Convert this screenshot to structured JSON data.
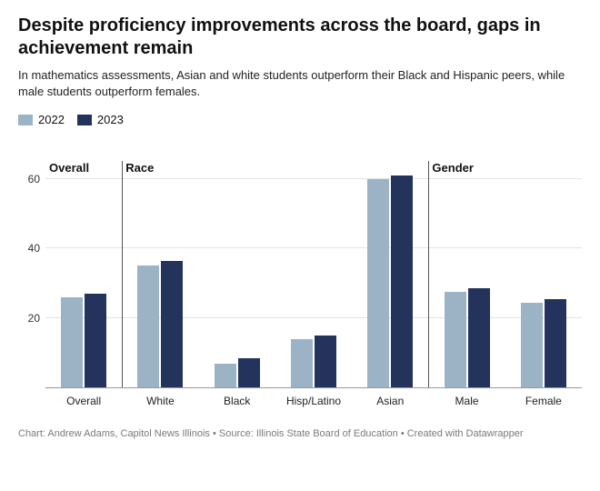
{
  "title": "Despite proficiency improvements across the board, gaps in achievement remain",
  "subtitle": "In mathematics assessments, Asian and white students outperform their Black and Hispanic peers, while male students outperform females.",
  "legend": [
    {
      "label": "2022",
      "color": "#9cb3c6"
    },
    {
      "label": "2023",
      "color": "#23335c"
    }
  ],
  "chart": {
    "type": "bar",
    "ylim": [
      0,
      65
    ],
    "yticks": [
      20,
      40,
      60
    ],
    "grid_color": "#e2e2e2",
    "axis_color": "#999999",
    "divider_color": "#555555",
    "background_color": "#ffffff",
    "title_fontsize": 20,
    "subtitle_fontsize": 13,
    "label_fontsize": 12,
    "bar_gap": 2,
    "groups": [
      {
        "label": "Overall",
        "divider_before": false,
        "categories": [
          {
            "label": "Overall",
            "v2022": 26,
            "v2023": 27
          }
        ]
      },
      {
        "label": "Race",
        "divider_before": true,
        "categories": [
          {
            "label": "White",
            "v2022": 35,
            "v2023": 36.5
          },
          {
            "label": "Black",
            "v2022": 7,
            "v2023": 8.5
          },
          {
            "label": "Hisp/Latino",
            "v2022": 14,
            "v2023": 15
          },
          {
            "label": "Asian",
            "v2022": 60,
            "v2023": 61
          }
        ]
      },
      {
        "label": "Gender",
        "divider_before": true,
        "categories": [
          {
            "label": "Male",
            "v2022": 27.5,
            "v2023": 28.5
          },
          {
            "label": "Female",
            "v2022": 24.5,
            "v2023": 25.5
          }
        ]
      }
    ]
  },
  "credit": "Chart: Andrew Adams, Capitol News Illinois • Source: Illinois State Board of Education • Created with Datawrapper"
}
